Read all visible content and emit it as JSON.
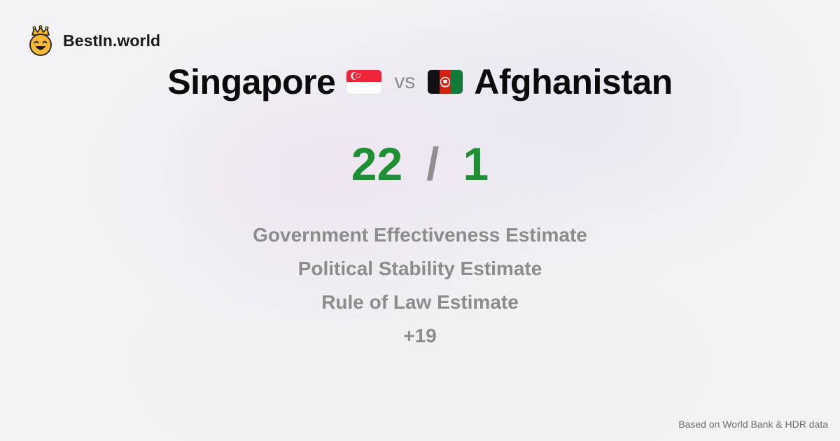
{
  "brand": {
    "name": "BestIn.world",
    "logo_icon": "crowned-smiley-icon"
  },
  "comparison": {
    "left": {
      "name": "Singapore",
      "flag_icon": "singapore-flag-icon",
      "score": "22"
    },
    "separator": "vs",
    "right": {
      "name": "Afghanistan",
      "flag_icon": "afghanistan-flag-icon",
      "score": "1"
    },
    "score_separator": "/"
  },
  "metrics": [
    "Government Effectiveness Estimate",
    "Political Stability Estimate",
    "Rule of Law Estimate"
  ],
  "more_count": "+19",
  "footer": "Based on World Bank & HDR data",
  "colors": {
    "score": "#1d9034",
    "muted": "#8c8c8c",
    "title": "#0b0b0b"
  }
}
